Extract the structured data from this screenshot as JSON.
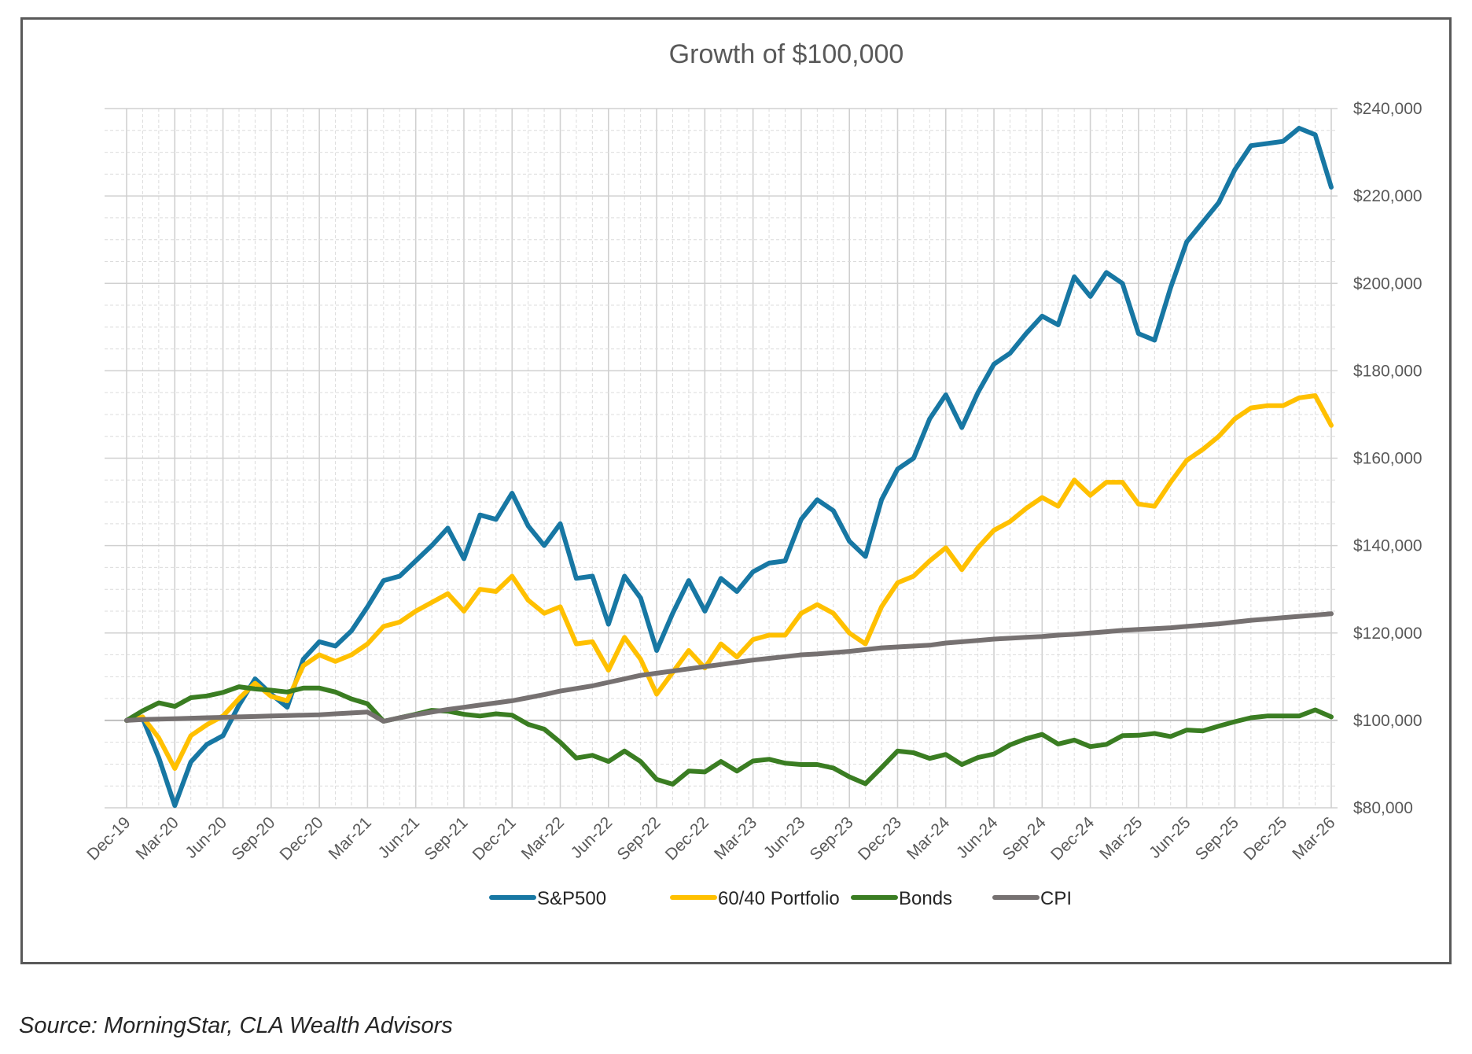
{
  "chart_data": {
    "type": "line",
    "title": "Growth of $100,000",
    "xlabel": "",
    "ylabel": "",
    "ylim": [
      80000,
      240000
    ],
    "y_ticks": [
      80000,
      100000,
      120000,
      140000,
      160000,
      180000,
      200000,
      220000,
      240000
    ],
    "y_tick_labels": [
      "$80,000",
      "$100,000",
      "$120,000",
      "$140,000",
      "$160,000",
      "$180,000",
      "$200,000",
      "$220,000",
      "$240,000"
    ],
    "x_tick_labels": [
      "Dec-19",
      "Mar-20",
      "Jun-20",
      "Sep-20",
      "Dec-20",
      "Mar-21",
      "Jun-21",
      "Sep-21",
      "Dec-21",
      "Mar-22",
      "Jun-22",
      "Sep-22",
      "Dec-22",
      "Mar-23",
      "Jun-23",
      "Sep-23",
      "Dec-23",
      "Mar-24",
      "Jun-24",
      "Sep-24",
      "Dec-24",
      "Mar-25",
      "Jun-25",
      "Sep-25",
      "Dec-25",
      "Mar-26"
    ],
    "x_tick_step_months": 3,
    "months_count": 76,
    "grid": true,
    "legend_position": "bottom",
    "series": [
      {
        "name": "S&P500",
        "color": "#1777A3",
        "values": [
          100000,
          100500,
          91500,
          80500,
          90500,
          94500,
          96500,
          103500,
          109500,
          106000,
          103000,
          114000,
          118000,
          117000,
          120500,
          126000,
          132000,
          133000,
          136500,
          140000,
          144000,
          137000,
          147000,
          146000,
          152000,
          144500,
          140000,
          145000,
          132500,
          133000,
          122000,
          133000,
          128000,
          116000,
          124500,
          132000,
          125000,
          132500,
          129500,
          134000,
          136000,
          136500,
          146000,
          150500,
          148000,
          141000,
          137500,
          150500,
          157500,
          160000,
          169000,
          174500,
          167000,
          175000,
          181500,
          184000,
          188500,
          192500,
          190500,
          201500,
          197000,
          202500,
          200000,
          188500,
          187000,
          199000,
          209500,
          214000,
          218500,
          226000,
          231500,
          232000,
          232500,
          235500,
          234000,
          222000
        ]
      },
      {
        "name": "60/40 Portfolio",
        "color": "#FFC000",
        "values": [
          100000,
          100800,
          96000,
          89000,
          96500,
          99000,
          101000,
          105000,
          108500,
          105500,
          104500,
          112500,
          115000,
          113500,
          115000,
          117500,
          121500,
          122500,
          125000,
          127000,
          129000,
          125000,
          130000,
          129500,
          133000,
          127500,
          124500,
          126000,
          117500,
          118000,
          111500,
          119000,
          114000,
          106000,
          111000,
          116000,
          112000,
          117500,
          114500,
          118500,
          119500,
          119500,
          124500,
          126500,
          124500,
          120000,
          117500,
          126000,
          131500,
          133000,
          136500,
          139500,
          134500,
          139500,
          143500,
          145500,
          148500,
          151000,
          149000,
          155000,
          151500,
          154500,
          154500,
          149500,
          149000,
          154500,
          159500,
          162000,
          165000,
          169000,
          171500,
          172000,
          172000,
          173800,
          174300,
          167500
        ]
      },
      {
        "name": "Bonds",
        "color": "#3A7D22",
        "values": [
          100000,
          102200,
          104000,
          103200,
          105200,
          105600,
          106400,
          107700,
          107200,
          106900,
          106500,
          107400,
          107400,
          106500,
          104900,
          103800,
          99800,
          100600,
          101400,
          102300,
          102100,
          101400,
          101000,
          101500,
          101200,
          99100,
          98000,
          95000,
          91400,
          92000,
          90600,
          93000,
          90600,
          86500,
          85400,
          88400,
          88200,
          90600,
          88400,
          90700,
          91100,
          90200,
          89900,
          89900,
          89100,
          87100,
          85500,
          89200,
          93000,
          92600,
          91300,
          92200,
          89900,
          91500,
          92300,
          94400,
          95800,
          96800,
          94600,
          95500,
          94000,
          94500,
          96500,
          96600,
          97000,
          96300,
          97800,
          97600,
          98700,
          99700,
          100600,
          101000,
          101000,
          101000,
          102400,
          100800
        ]
      },
      {
        "name": "CPI",
        "color": "#767171",
        "values": [
          100000,
          100200,
          100300,
          100400,
          100500,
          100600,
          100700,
          100800,
          100900,
          101000,
          101100,
          101200,
          101300,
          101500,
          101700,
          101900,
          99800,
          100600,
          101300,
          101900,
          102500,
          103000,
          103500,
          104000,
          104500,
          105200,
          105900,
          106700,
          107300,
          107900,
          108700,
          109500,
          110300,
          110800,
          111300,
          111800,
          112300,
          112800,
          113300,
          113800,
          114200,
          114600,
          115000,
          115200,
          115500,
          115800,
          116200,
          116600,
          116800,
          117000,
          117200,
          117700,
          118000,
          118300,
          118600,
          118800,
          119000,
          119200,
          119500,
          119700,
          120000,
          120300,
          120600,
          120800,
          121000,
          121200,
          121500,
          121800,
          122100,
          122500,
          122900,
          123200,
          123500,
          123800,
          124100,
          124400
        ]
      }
    ]
  },
  "footer": {
    "source": "Source: MorningStar, CLA Wealth Advisors"
  }
}
